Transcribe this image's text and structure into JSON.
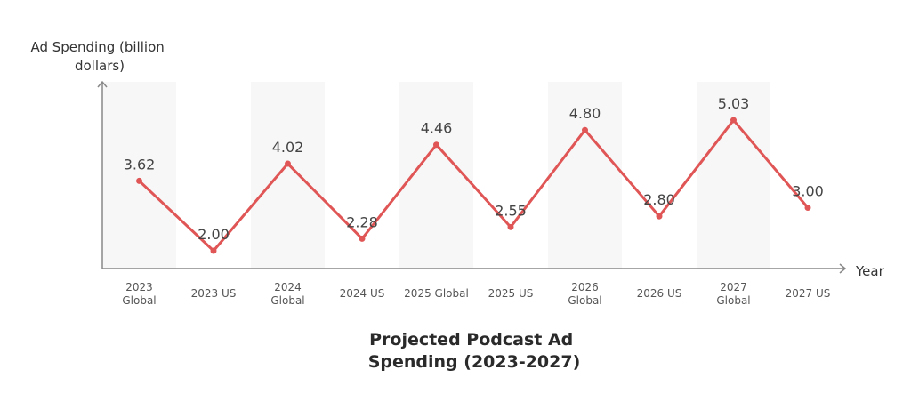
{
  "chart_data": {
    "type": "line",
    "title": "Projected Podcast Ad Spending (2023-2027)",
    "xlabel": "Year",
    "ylabel": "Ad Spending (billion dollars)",
    "categories": [
      "2023 Global",
      "2023 US",
      "2024 Global",
      "2024 US",
      "2025 Global",
      "2025 US",
      "2026 Global",
      "2026 US",
      "2027 Global",
      "2027 US"
    ],
    "series": [
      {
        "values": [
          3.62,
          2.0,
          4.02,
          2.28,
          4.46,
          2.55,
          4.8,
          2.8,
          5.03,
          3.0
        ],
        "labels": [
          "3.62",
          "2.00",
          "4.02",
          "2.28",
          "4.46",
          "2.55",
          "4.80",
          "2.80",
          "5.03",
          "3.00"
        ],
        "color": "#e05555"
      }
    ],
    "band_color": "#f7f7f7",
    "axis_color": "#888888",
    "legend": "none",
    "grid": false
  }
}
